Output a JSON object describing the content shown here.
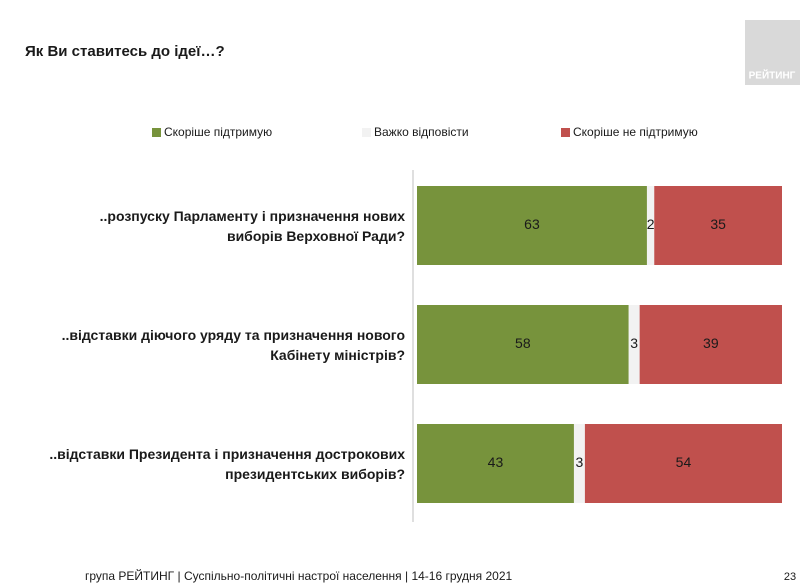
{
  "chart_data": {
    "type": "stacked_bar_horizontal",
    "title": "Як Ви ставитесь до ідеї…?",
    "logo": "РЕЙТИНГ",
    "categories": [
      "..розпуску Парламенту і призначення нових виборів Верховної Ради?",
      "..відставки діючого уряду та призначення нового Кабінету міністрів?",
      "..відставки Президента і призначення дострокових президентських виборів?"
    ],
    "series": [
      {
        "name": "Скоріше підтримую",
        "color": "#77933c",
        "values": [
          63,
          58,
          43
        ]
      },
      {
        "name": "Важко відповісти",
        "color": "#f2f2f2",
        "values": [
          2,
          3,
          3
        ]
      },
      {
        "name": "Скоріше не підтримую",
        "color": "#c0504d",
        "values": [
          35,
          39,
          54
        ]
      }
    ],
    "xlim": [
      0,
      100
    ],
    "footer": "група РЕЙТИНГ | Суспільно-політичні настрої населення |  14-16 грудня 2021",
    "page_number": "23"
  }
}
